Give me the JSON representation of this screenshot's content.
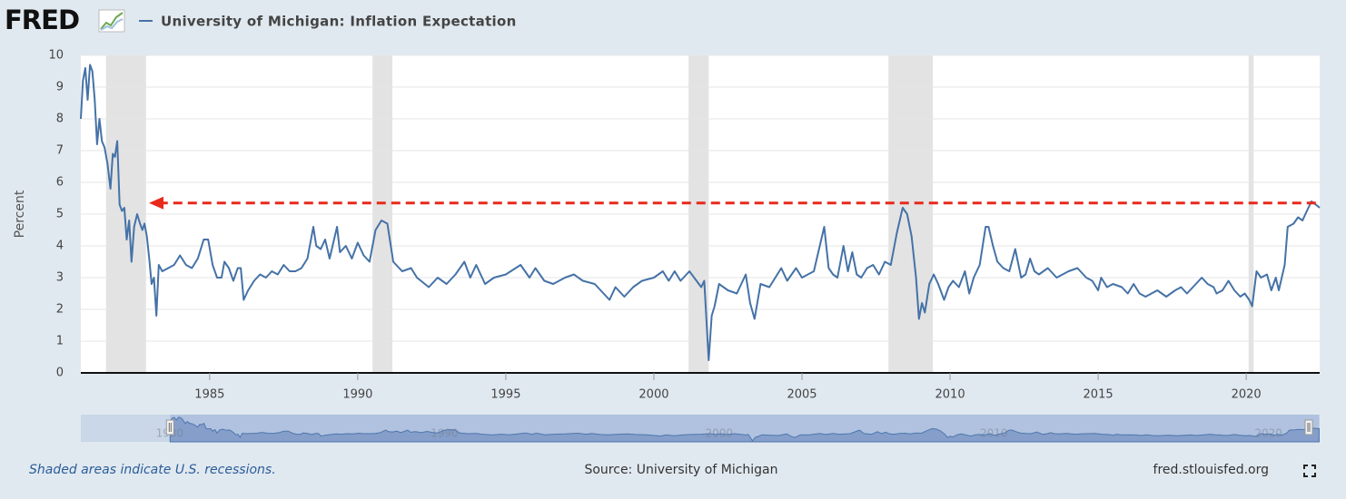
{
  "logo": "FRED",
  "chart_data": {
    "type": "line",
    "series": [
      {
        "name": "University of Michigan: Inflation Expectation",
        "color": "#4572a7",
        "x": [
          1980.65,
          1980.72,
          1980.8,
          1980.88,
          1980.96,
          1981.04,
          1981.12,
          1981.2,
          1981.28,
          1981.36,
          1981.45,
          1981.55,
          1981.65,
          1981.73,
          1981.8,
          1981.88,
          1981.96,
          1982.04,
          1982.12,
          1982.2,
          1982.28,
          1982.36,
          1982.45,
          1982.55,
          1982.65,
          1982.73,
          1982.8,
          1982.88,
          1982.96,
          1983.04,
          1983.12,
          1983.2,
          1983.28,
          1983.4,
          1983.6,
          1983.8,
          1984.0,
          1984.2,
          1984.4,
          1984.6,
          1984.8,
          1984.95,
          1985.1,
          1985.25,
          1985.4,
          1985.5,
          1985.65,
          1985.8,
          1985.95,
          1986.05,
          1986.15,
          1986.3,
          1986.5,
          1986.7,
          1986.9,
          1987.1,
          1987.3,
          1987.5,
          1987.7,
          1987.9,
          1988.1,
          1988.3,
          1988.5,
          1988.6,
          1988.75,
          1988.9,
          1989.05,
          1989.3,
          1989.4,
          1989.6,
          1989.8,
          1990.0,
          1990.2,
          1990.4,
          1990.6,
          1990.8,
          1991.0,
          1991.2,
          1991.5,
          1991.8,
          1992.0,
          1992.4,
          1992.7,
          1993.0,
          1993.3,
          1993.6,
          1993.8,
          1994.0,
          1994.3,
          1994.6,
          1995.0,
          1995.5,
          1995.8,
          1996.0,
          1996.3,
          1996.6,
          1997.0,
          1997.3,
          1997.6,
          1998.0,
          1998.5,
          1998.7,
          1999.0,
          1999.3,
          1999.6,
          2000.0,
          2000.3,
          2000.5,
          2000.7,
          2000.9,
          2001.0,
          2001.2,
          2001.6,
          2001.7,
          2001.85,
          2001.95,
          2002.05,
          2002.2,
          2002.5,
          2002.8,
          2003.1,
          2003.25,
          2003.4,
          2003.6,
          2003.9,
          2004.3,
          2004.5,
          2004.8,
          2005.0,
          2005.4,
          2005.75,
          2005.9,
          2006.05,
          2006.2,
          2006.4,
          2006.55,
          2006.7,
          2006.85,
          2007.0,
          2007.2,
          2007.4,
          2007.6,
          2007.8,
          2008.0,
          2008.2,
          2008.4,
          2008.55,
          2008.7,
          2008.85,
          2008.95,
          2009.05,
          2009.15,
          2009.3,
          2009.45,
          2009.6,
          2009.8,
          2009.95,
          2010.1,
          2010.3,
          2010.5,
          2010.65,
          2010.8,
          2011.0,
          2011.2,
          2011.3,
          2011.45,
          2011.6,
          2011.8,
          2012.0,
          2012.2,
          2012.4,
          2012.55,
          2012.7,
          2012.85,
          2013.0,
          2013.3,
          2013.6,
          2013.8,
          2014.0,
          2014.3,
          2014.6,
          2014.8,
          2015.0,
          2015.1,
          2015.3,
          2015.5,
          2015.8,
          2016.0,
          2016.2,
          2016.4,
          2016.6,
          2016.8,
          2017.0,
          2017.3,
          2017.6,
          2017.8,
          2018.0,
          2018.3,
          2018.5,
          2018.7,
          2018.9,
          2019.0,
          2019.2,
          2019.4,
          2019.6,
          2019.8,
          2019.95,
          2020.1,
          2020.2,
          2020.35,
          2020.5,
          2020.7,
          2020.85,
          2021.0,
          2021.1,
          2021.3,
          2021.4,
          2021.6,
          2021.75,
          2021.9,
          2022.0,
          2022.2,
          2022.35,
          2022.48
        ],
        "values": [
          8.0,
          9.2,
          9.6,
          8.6,
          9.7,
          9.5,
          8.6,
          7.2,
          8.0,
          7.3,
          7.1,
          6.6,
          5.8,
          6.9,
          6.8,
          7.3,
          5.3,
          5.1,
          5.2,
          4.2,
          4.8,
          3.5,
          4.6,
          5.0,
          4.7,
          4.5,
          4.7,
          4.3,
          3.6,
          2.8,
          3.0,
          1.8,
          3.4,
          3.2,
          3.3,
          3.4,
          3.7,
          3.4,
          3.3,
          3.6,
          4.2,
          4.2,
          3.4,
          3.0,
          3.0,
          3.5,
          3.3,
          2.9,
          3.3,
          3.3,
          2.3,
          2.6,
          2.9,
          3.1,
          3.0,
          3.2,
          3.1,
          3.4,
          3.2,
          3.2,
          3.3,
          3.6,
          4.6,
          4.0,
          3.9,
          4.2,
          3.6,
          4.6,
          3.8,
          4.0,
          3.6,
          4.1,
          3.7,
          3.5,
          4.5,
          4.8,
          4.7,
          3.5,
          3.2,
          3.3,
          3.0,
          2.7,
          3.0,
          2.8,
          3.1,
          3.5,
          3.0,
          3.4,
          2.8,
          3.0,
          3.1,
          3.4,
          3.0,
          3.3,
          2.9,
          2.8,
          3.0,
          3.1,
          2.9,
          2.8,
          2.3,
          2.7,
          2.4,
          2.7,
          2.9,
          3.0,
          3.2,
          2.9,
          3.2,
          2.9,
          3.0,
          3.2,
          2.7,
          2.9,
          0.4,
          1.8,
          2.1,
          2.8,
          2.6,
          2.5,
          3.1,
          2.2,
          1.7,
          2.8,
          2.7,
          3.3,
          2.9,
          3.3,
          3.0,
          3.2,
          4.6,
          3.3,
          3.1,
          3.0,
          4.0,
          3.2,
          3.8,
          3.1,
          3.0,
          3.3,
          3.4,
          3.1,
          3.5,
          3.4,
          4.4,
          5.2,
          5.0,
          4.3,
          3.0,
          1.7,
          2.2,
          1.9,
          2.8,
          3.1,
          2.8,
          2.3,
          2.7,
          2.9,
          2.7,
          3.2,
          2.5,
          3.0,
          3.4,
          4.6,
          4.6,
          4.0,
          3.5,
          3.3,
          3.2,
          3.9,
          3.0,
          3.1,
          3.6,
          3.2,
          3.1,
          3.3,
          3.0,
          3.1,
          3.2,
          3.3,
          3.0,
          2.9,
          2.6,
          3.0,
          2.7,
          2.8,
          2.7,
          2.5,
          2.8,
          2.5,
          2.4,
          2.5,
          2.6,
          2.4,
          2.6,
          2.7,
          2.5,
          2.8,
          3.0,
          2.8,
          2.7,
          2.5,
          2.6,
          2.9,
          2.6,
          2.4,
          2.5,
          2.3,
          2.1,
          3.2,
          3.0,
          3.1,
          2.6,
          3.0,
          2.6,
          3.4,
          4.6,
          4.7,
          4.9,
          4.8,
          5.0,
          5.4,
          5.3,
          5.2
        ]
      }
    ],
    "ylabel": "Percent",
    "xlim": [
      1980.65,
      2022.48
    ],
    "xticks": [
      1985,
      1990,
      1995,
      2000,
      2005,
      2010,
      2015,
      2020
    ],
    "ylim": [
      0,
      10
    ],
    "yticks": [
      0,
      1,
      2,
      3,
      4,
      5,
      6,
      7,
      8,
      9,
      10
    ],
    "grid": true,
    "recessions": [
      [
        1981.5,
        1982.85
      ],
      [
        1990.5,
        1991.17
      ],
      [
        2001.17,
        2001.85
      ],
      [
        2007.92,
        2009.42
      ],
      [
        2020.08,
        2020.25
      ]
    ],
    "annotation_arrow": {
      "x": [
        2022.35,
        1982.95
      ],
      "y": 5.35,
      "color": "#e8291c"
    },
    "navigator_xlim": [
      1977.4,
      2022.5
    ],
    "navigator_xticks": [
      1980,
      1990,
      2000,
      2010,
      2020
    ]
  },
  "footer": {
    "note": "Shaded areas indicate U.S. recessions.",
    "source": "Source: University of Michigan",
    "site": "fred.stlouisfed.org"
  }
}
